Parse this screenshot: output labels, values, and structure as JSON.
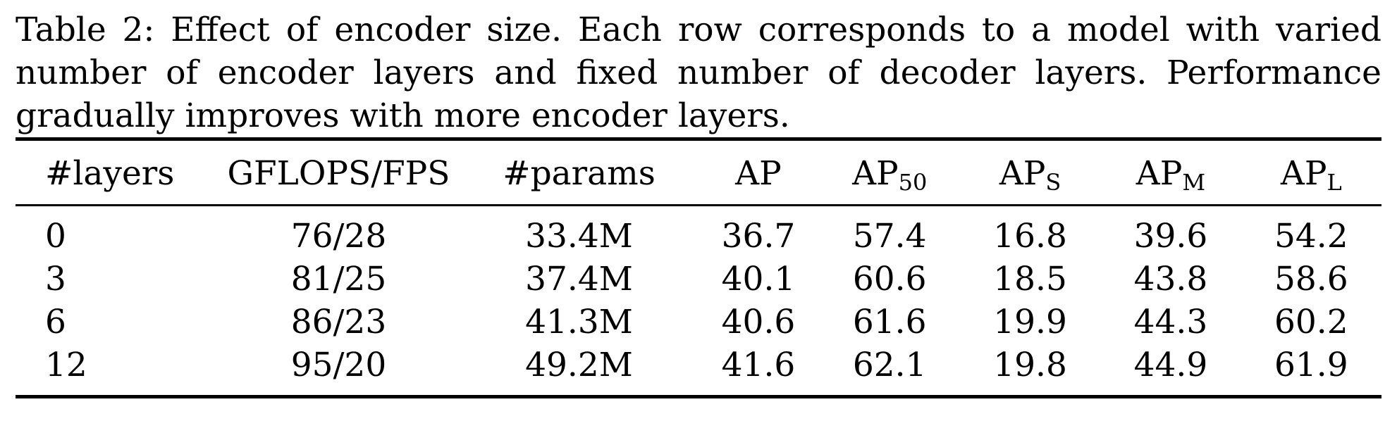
{
  "caption": "Table 2: Effect of encoder size. Each row corresponds to a model with varied number of encoder layers and fixed number of decoder layers. Performance gradually improves with more encoder layers.",
  "table": {
    "headers": [
      {
        "main": "#layers",
        "sub": ""
      },
      {
        "main": "GFLOPS/FPS",
        "sub": ""
      },
      {
        "main": "#params",
        "sub": ""
      },
      {
        "main": "AP",
        "sub": ""
      },
      {
        "main": "AP",
        "sub": "50"
      },
      {
        "main": "AP",
        "sub": "S"
      },
      {
        "main": "AP",
        "sub": "M"
      },
      {
        "main": "AP",
        "sub": "L"
      }
    ],
    "rows": [
      [
        "0",
        "76/28",
        "33.4M",
        "36.7",
        "57.4",
        "16.8",
        "39.6",
        "54.2"
      ],
      [
        "3",
        "81/25",
        "37.4M",
        "40.1",
        "60.6",
        "18.5",
        "43.8",
        "58.6"
      ],
      [
        "6",
        "86/23",
        "41.3M",
        "40.6",
        "61.6",
        "19.9",
        "44.3",
        "60.2"
      ],
      [
        "12",
        "95/20",
        "49.2M",
        "41.6",
        "62.1",
        "19.8",
        "44.9",
        "61.9"
      ]
    ]
  }
}
